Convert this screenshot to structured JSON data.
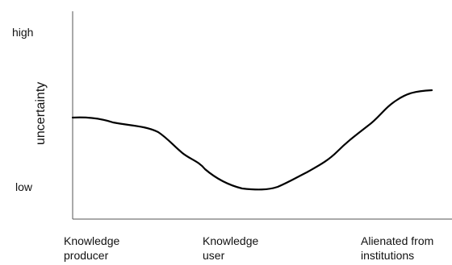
{
  "diagram": {
    "y_axis_title": "uncertainty",
    "y_high_label": "high",
    "y_low_label": "low",
    "x_categories": [
      {
        "line1": "Knowledge",
        "line2": "producer"
      },
      {
        "line1": "Knowledge",
        "line2": "user"
      },
      {
        "line1": "Alienated from",
        "line2": "institutions"
      }
    ],
    "curve": {
      "description_hint": "uncertainty starts mid, drops to minimum at knowledge user, rises to high for alienated from institutions",
      "color": "#000000"
    },
    "axis_color": "#555555"
  }
}
